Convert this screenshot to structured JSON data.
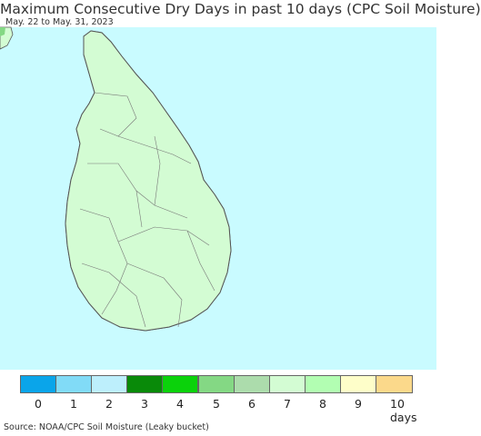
{
  "title": "Maximum Consecutive Dry Days in past 10 days (CPC Soil Moisture)",
  "subtitle": "May. 22 to May. 31, 2023",
  "source": "Source: NOAA/CPC Soil Moisture (Leaky bucket)",
  "colors": {
    "ocean": "#c9fbff",
    "land_outline": "#555555",
    "district_lines": "#777777"
  },
  "legend": {
    "bins": [
      {
        "value": "0",
        "color": "#0aa5ea"
      },
      {
        "value": "1",
        "color": "#81dbf7"
      },
      {
        "value": "2",
        "color": "#bdeffc"
      },
      {
        "value": "3",
        "color": "#098a09"
      },
      {
        "value": "4",
        "color": "#0bd20b"
      },
      {
        "value": "5",
        "color": "#84d884"
      },
      {
        "value": "6",
        "color": "#acdcac"
      },
      {
        "value": "7",
        "color": "#d3fcd3"
      },
      {
        "value": "8",
        "color": "#b2feb2"
      },
      {
        "value": "9",
        "color": "#fefec9"
      },
      {
        "value": "10",
        "color": "#fbd98b"
      }
    ],
    "labels": [
      "0",
      "1",
      "2",
      "3",
      "4",
      "5",
      "6",
      "7",
      "8",
      "9",
      "10 days"
    ]
  }
}
